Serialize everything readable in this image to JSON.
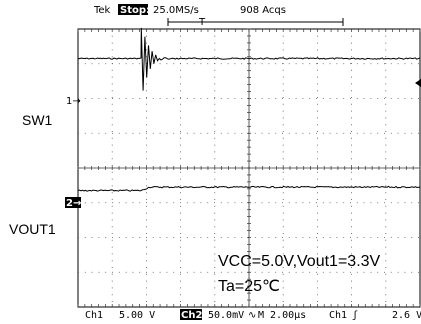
{
  "header": {
    "brand": "Tek",
    "status": "Stop:",
    "sample_rate": "25.0MS/s",
    "acqs": "908 Acqs",
    "trigger_marker": "T"
  },
  "labels": {
    "sw1": "SW1",
    "vout1": "VOUT1",
    "ch1_marker": "1→",
    "ch2_marker": "2→"
  },
  "conditions": {
    "line1": "VCC=5.0V,Vout1=3.3V",
    "line2": "Ta=25℃"
  },
  "footer": {
    "ch1": "Ch1",
    "ch1_scale": "5.00 V",
    "ch2": "Ch2",
    "ch2_scale": "50.0mV",
    "bw_symbol": "∿",
    "timebase": "M 2.00µs",
    "trig_source": "Ch1",
    "trig_slope": "ʃ",
    "trig_level": "2.6 V"
  },
  "chart_data": {
    "type": "line",
    "x_divisions": 10,
    "y_divisions": 8,
    "time_per_div_us": 2.0,
    "series": [
      {
        "name": "SW1",
        "channel": "Ch1",
        "volts_per_div": 5.0,
        "baseline_div": 3.15,
        "event_time_div": 1.85,
        "ringing": [
          2.1,
          -2.2,
          1.5,
          -1.3,
          0.9,
          -0.7,
          0.5,
          -0.35,
          0.25,
          -0.15
        ]
      },
      {
        "name": "VOUT1",
        "channel": "Ch2",
        "volts_per_div": 0.05,
        "baseline_div": -0.65,
        "event_time_div": 1.85,
        "step_div": 0.1
      }
    ],
    "grid": true
  }
}
